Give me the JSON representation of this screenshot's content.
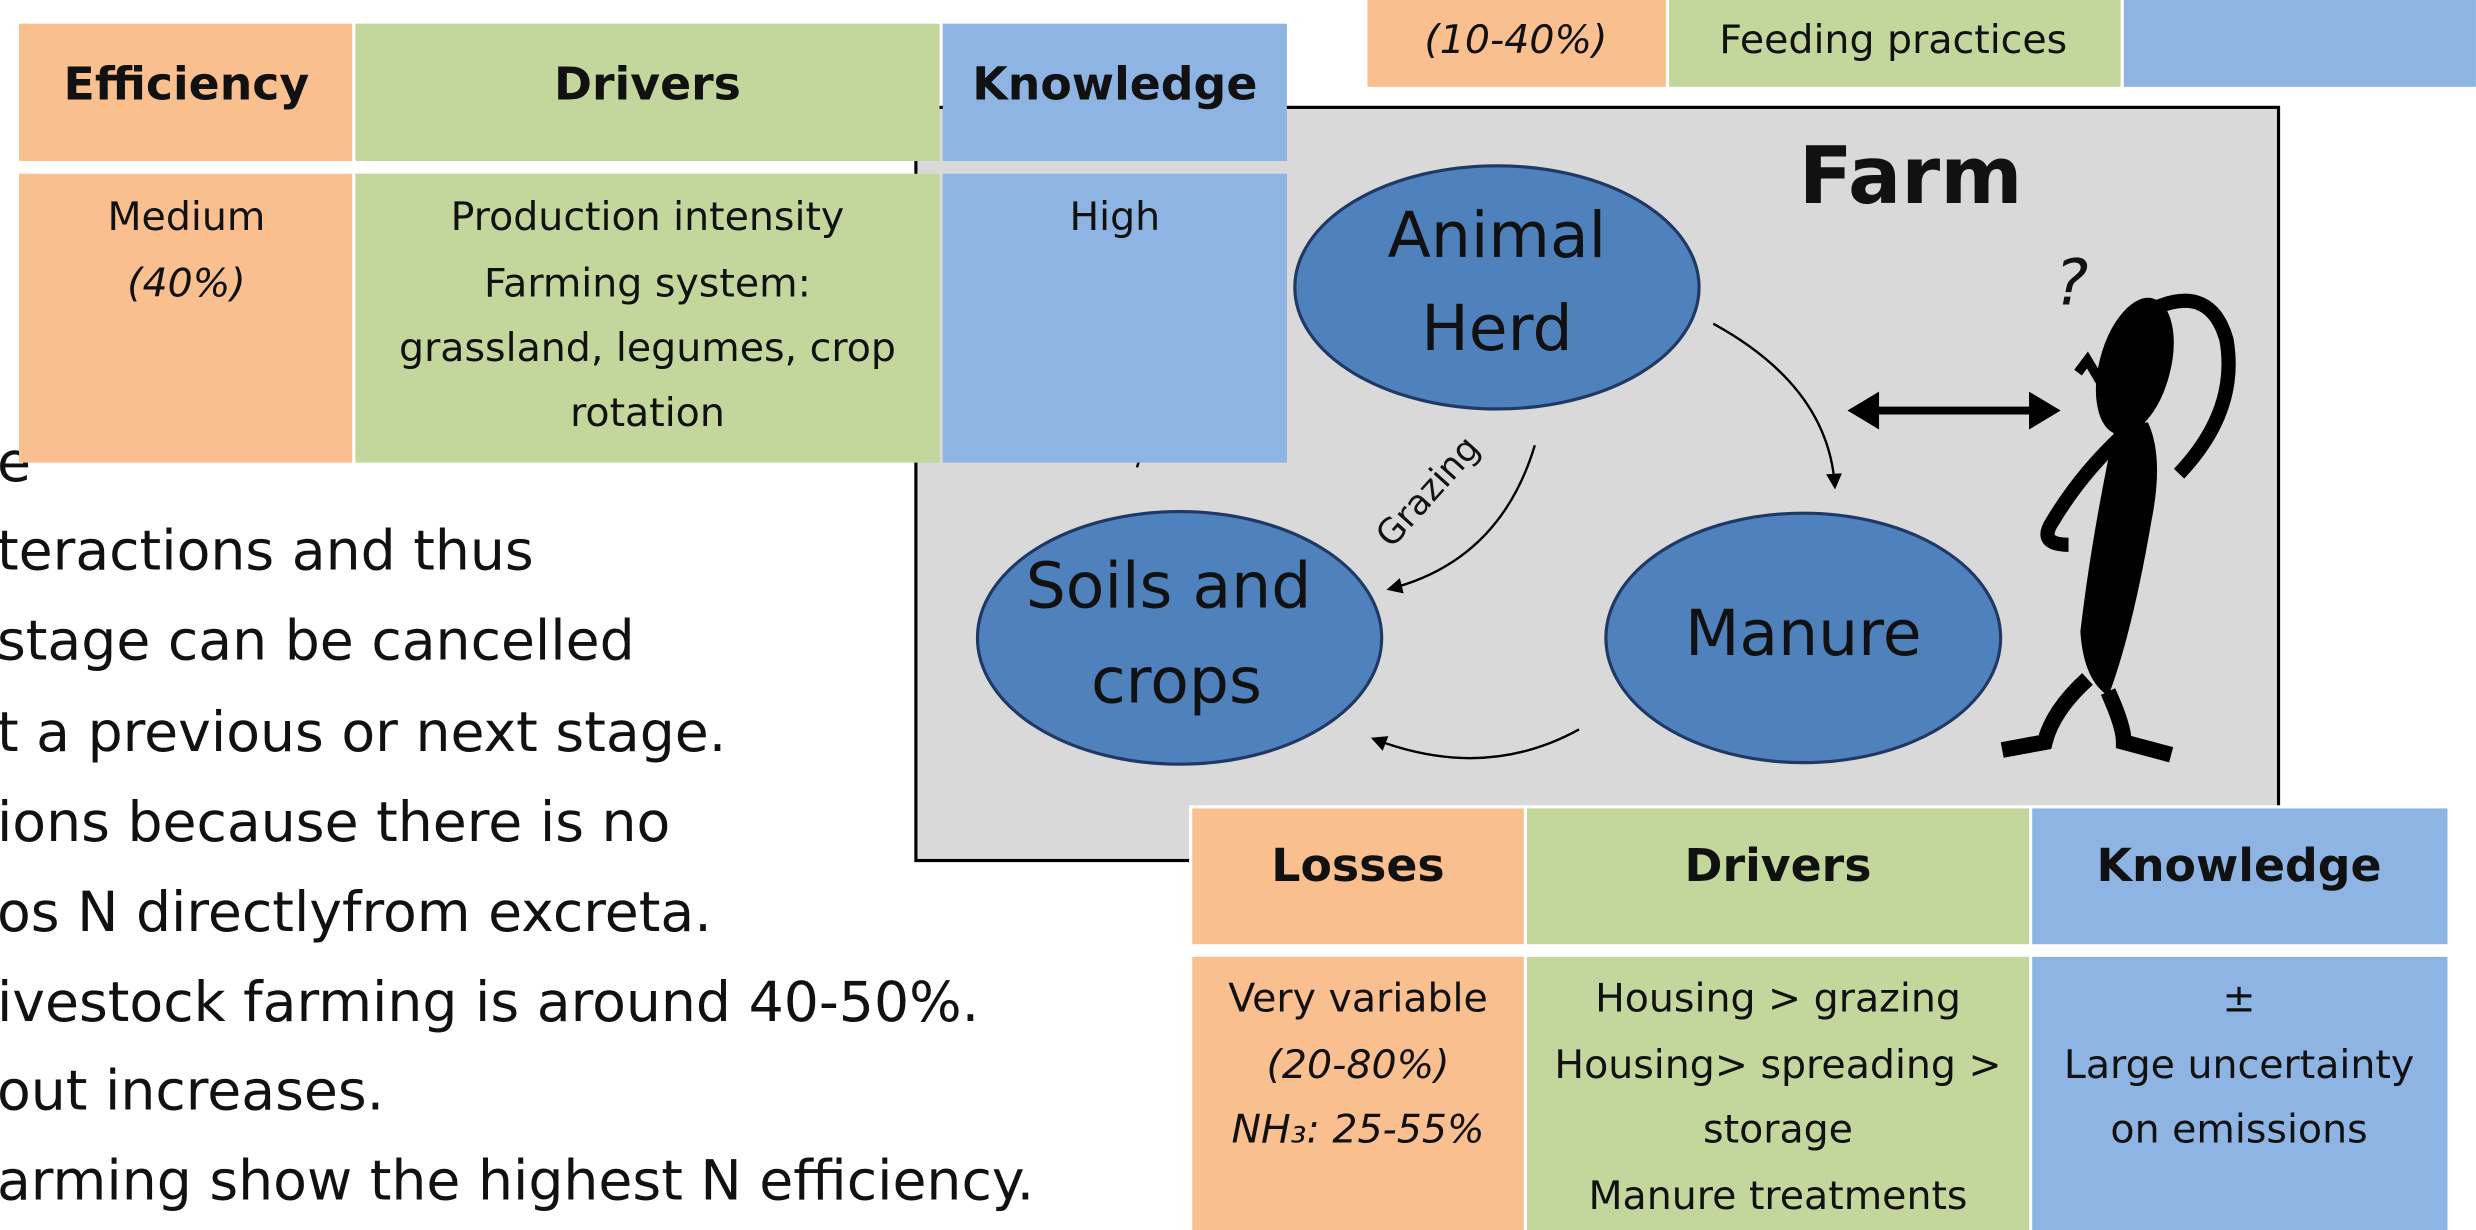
{
  "top_partial": {
    "cells": [
      "(10-40%)",
      "Feeding practices"
    ]
  },
  "efficiency_table": {
    "headers": [
      "Efficiency",
      "Drivers",
      "Knowledge"
    ],
    "row": [
      [
        "Medium",
        "(40%)"
      ],
      [
        "Production intensity",
        "Farming system:",
        "grassland, legumes, crop",
        "rotation"
      ],
      [
        "High"
      ]
    ]
  },
  "body_text": [
    "e",
    "teractions and thus",
    "stage can be cancelled",
    "t a previous or next stage.",
    "ions because there is no",
    "os N directlyfrom excreta.",
    "ivestock farming is around 40-50%.",
    "out increases.",
    "arming show the  highest N efficiency."
  ],
  "diagram": {
    "title": "Farm",
    "nodes": [
      [
        "Animal",
        "Herd"
      ],
      [
        "Soils and",
        "crops"
      ],
      [
        "Manure"
      ]
    ],
    "edge_label": "Grazing",
    "figure_mark": "?"
  },
  "losses_table": {
    "headers": [
      "Losses",
      "Drivers",
      "Knowledge"
    ],
    "row": [
      [
        "Very variable",
        "(20-80%)",
        "NH₃: 25-55%"
      ],
      [
        "Housing > grazing",
        "Housing> spreading >",
        "storage",
        "Manure treatments"
      ],
      [
        "±",
        "Large uncertainty",
        "on emissions"
      ]
    ]
  }
}
